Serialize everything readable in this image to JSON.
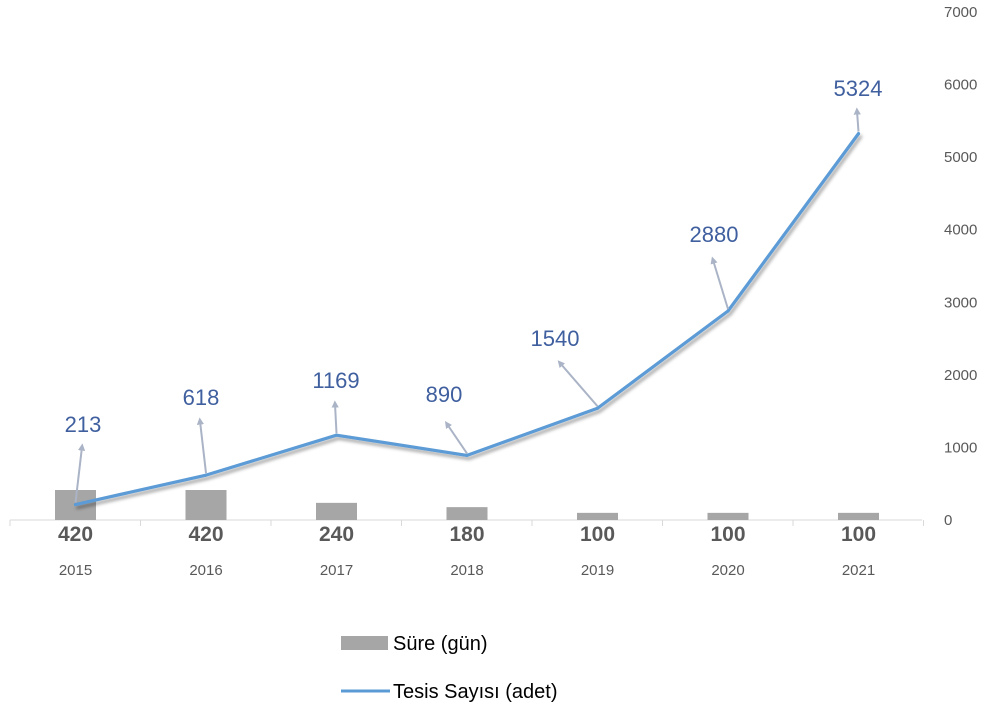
{
  "chart_data": {
    "type": "bar",
    "categories": [
      "2015",
      "2016",
      "2017",
      "2018",
      "2019",
      "2020",
      "2021"
    ],
    "series": [
      {
        "name": "Süre (gün)",
        "type": "bar",
        "values": [
          420,
          420,
          240,
          180,
          100,
          100,
          100
        ],
        "color": "#a6a6a6",
        "label_color": "#595959"
      },
      {
        "name": "Tesis Sayısı (adet)",
        "type": "line",
        "values": [
          213,
          618,
          1169,
          890,
          1540,
          2880,
          5324
        ],
        "color": "#5b9bd5",
        "label_color": "#3f5f9f"
      }
    ],
    "yaxis_right": {
      "ticks": [
        "0",
        "1000",
        "2000",
        "3000",
        "4000",
        "5000",
        "6000",
        "7000"
      ],
      "ylim": [
        0,
        7000
      ],
      "position": "right"
    },
    "grid": false,
    "legend": {
      "position": "bottom",
      "items": [
        "Süre (gün)",
        "Tesis Sayısı (adet)"
      ]
    },
    "title": "",
    "xlabel": "",
    "ylabel": "",
    "annotations": "arrows pointing from line points to value labels"
  }
}
